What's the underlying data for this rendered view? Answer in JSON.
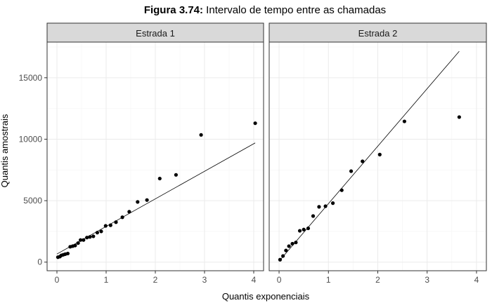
{
  "title": {
    "prefix": "Figura 3.74:",
    "text": " Intervalo de tempo entre as chamadas"
  },
  "xlabel": "Quantis exponenciais",
  "ylabel": "Quantis amostrais",
  "colors": {
    "strip_bg": "#d9d9d9",
    "panel_border": "#333333",
    "grid_major": "#ebebeb",
    "grid_minor": "#f5f5f5",
    "point": "#000000",
    "line": "#000000",
    "axis_text": "#4d4d4d"
  },
  "chart_data": [
    {
      "type": "scatter",
      "panel": "Estrada 1",
      "xlim": [
        -0.2,
        4.2
      ],
      "ylim": [
        -700,
        17900
      ],
      "xticks": [
        0,
        1,
        2,
        3,
        4
      ],
      "yticks": [
        0,
        5000,
        10000,
        15000
      ],
      "ytick_labels": [
        "0",
        "5000",
        "10000",
        "15000"
      ],
      "grid": true,
      "points": [
        [
          0.02,
          400
        ],
        [
          0.06,
          450
        ],
        [
          0.09,
          550
        ],
        [
          0.13,
          600
        ],
        [
          0.17,
          650
        ],
        [
          0.22,
          700
        ],
        [
          0.27,
          1250
        ],
        [
          0.32,
          1300
        ],
        [
          0.37,
          1350
        ],
        [
          0.43,
          1550
        ],
        [
          0.48,
          1800
        ],
        [
          0.54,
          1800
        ],
        [
          0.61,
          2000
        ],
        [
          0.67,
          2050
        ],
        [
          0.74,
          2100
        ],
        [
          0.82,
          2400
        ],
        [
          0.9,
          2500
        ],
        [
          0.99,
          2950
        ],
        [
          1.09,
          3000
        ],
        [
          1.2,
          3250
        ],
        [
          1.33,
          3650
        ],
        [
          1.47,
          4100
        ],
        [
          1.64,
          4900
        ],
        [
          1.83,
          5050
        ],
        [
          2.09,
          6800
        ],
        [
          2.42,
          7100
        ],
        [
          2.93,
          10350
        ],
        [
          4.03,
          11300
        ]
      ],
      "reference_line": {
        "x": [
          0.0,
          4.03
        ],
        "y": [
          660,
          9700
        ]
      }
    },
    {
      "type": "scatter",
      "panel": "Estrada 2",
      "xlim": [
        -0.2,
        4.2
      ],
      "ylim": [
        -700,
        17900
      ],
      "xticks": [
        0,
        1,
        2,
        3,
        4
      ],
      "yticks": [
        0,
        5000,
        10000,
        15000
      ],
      "grid": true,
      "points": [
        [
          0.02,
          200
        ],
        [
          0.08,
          500
        ],
        [
          0.14,
          950
        ],
        [
          0.2,
          1300
        ],
        [
          0.27,
          1500
        ],
        [
          0.34,
          1600
        ],
        [
          0.42,
          2550
        ],
        [
          0.5,
          2650
        ],
        [
          0.59,
          2750
        ],
        [
          0.69,
          3750
        ],
        [
          0.81,
          4500
        ],
        [
          0.94,
          4550
        ],
        [
          1.09,
          4800
        ],
        [
          1.27,
          5850
        ],
        [
          1.46,
          7400
        ],
        [
          1.69,
          8200
        ],
        [
          2.04,
          8750
        ],
        [
          2.54,
          11450
        ],
        [
          3.65,
          11800
        ]
      ],
      "reference_line": {
        "x": [
          0.0,
          3.65
        ],
        "y": [
          80,
          17150
        ]
      }
    }
  ]
}
